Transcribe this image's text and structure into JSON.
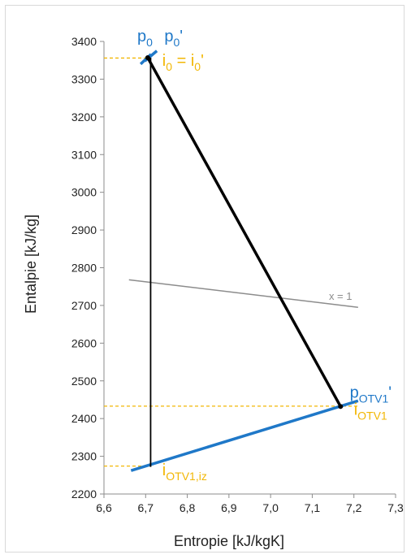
{
  "chart_data": {
    "type": "line",
    "xlabel": "Entropie [kJ/kgK]",
    "ylabel": "Entalpie [kJ/kg]",
    "xlim": [
      6.6,
      7.3
    ],
    "ylim": [
      2200,
      3400
    ],
    "x_ticks": [
      "6,6",
      "6,7",
      "6,8",
      "6,9",
      "7,0",
      "7,1",
      "7,2",
      "7,3"
    ],
    "y_ticks": [
      "2200",
      "2300",
      "2400",
      "2500",
      "2600",
      "2700",
      "2800",
      "2900",
      "3000",
      "3100",
      "3200",
      "3300",
      "3400"
    ],
    "grid": false,
    "colors": {
      "process": "#000000",
      "isobar": "#1f78c8",
      "guide": "#f2b705",
      "saturation": "#8c8c8c"
    },
    "series": [
      {
        "role": "expansion",
        "points": [
          [
            6.705,
            3357
          ],
          [
            7.168,
            2432
          ]
        ]
      },
      {
        "role": "isentropic",
        "points": [
          [
            6.712,
            3357
          ],
          [
            6.712,
            2272
          ]
        ]
      },
      {
        "role": "isobar_otv1",
        "points": [
          [
            6.665,
            2262
          ],
          [
            7.21,
            2447
          ]
        ]
      },
      {
        "role": "isobar_p0",
        "points": [
          [
            6.688,
            3340
          ],
          [
            6.713,
            3366
          ]
        ]
      },
      {
        "role": "isobar_p0_prime",
        "points": [
          [
            6.698,
            3348
          ],
          [
            6.727,
            3375
          ]
        ]
      },
      {
        "role": "saturation_line",
        "points": [
          [
            6.66,
            2768
          ],
          [
            7.21,
            2695
          ]
        ]
      },
      {
        "role": "guide_i0",
        "points": [
          [
            6.6,
            3356
          ],
          [
            6.705,
            3356
          ]
        ]
      },
      {
        "role": "guide_iotv1",
        "points": [
          [
            6.6,
            2433
          ],
          [
            7.21,
            2433
          ]
        ]
      },
      {
        "role": "guide_iotv1_iz",
        "points": [
          [
            6.6,
            2274
          ],
          [
            6.712,
            2274
          ]
        ]
      }
    ],
    "markers": [
      [
        6.705,
        3357
      ],
      [
        7.168,
        2432
      ]
    ],
    "annotations": [
      {
        "id": "p0",
        "base": "p",
        "sub": "0",
        "suffix": "",
        "color": "#1f78c8",
        "x": 6.68,
        "y": 3400
      },
      {
        "id": "p0_prime",
        "base": "p",
        "sub": "0",
        "suffix": "'",
        "color": "#1f78c8",
        "x": 6.745,
        "y": 3400
      },
      {
        "id": "i0",
        "base": "i",
        "sub": "0",
        "suffix": " = i",
        "sub2": "0",
        "suffix2": "'",
        "color": "#f2b705",
        "x": 6.74,
        "y": 3335
      },
      {
        "id": "potv1",
        "base": "p",
        "sub": "OTV1",
        "suffix": "'",
        "color": "#1f78c8",
        "x": 7.19,
        "y": 2455
      },
      {
        "id": "iotv1",
        "base": "i",
        "sub": "OTV1",
        "suffix": "",
        "color": "#f2b705",
        "x": 7.2,
        "y": 2410
      },
      {
        "id": "iotv1_iz",
        "base": "i",
        "sub": "OTV1,iz",
        "suffix": "",
        "color": "#f2b705",
        "x": 6.74,
        "y": 2250
      },
      {
        "id": "x1",
        "text": "x = 1",
        "color": "#8c8c8c",
        "x": 7.14,
        "y": 2715
      }
    ]
  }
}
